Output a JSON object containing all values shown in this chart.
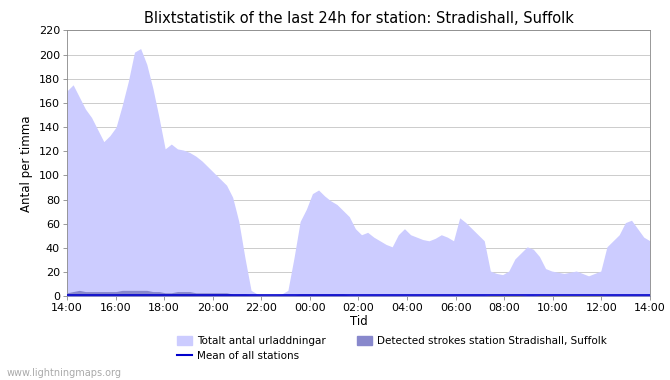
{
  "title": "Blixtstatistik of the last 24h for station: Stradishall, Suffolk",
  "ylabel": "Antal per timma",
  "xlabel": "Tid",
  "watermark": "www.lightningmaps.org",
  "x_ticks": [
    "14:00",
    "16:00",
    "18:00",
    "20:00",
    "22:00",
    "00:00",
    "02:00",
    "04:00",
    "06:00",
    "08:00",
    "10:00",
    "12:00",
    "14:00"
  ],
  "ylim": [
    0,
    220
  ],
  "yticks": [
    0,
    20,
    40,
    60,
    80,
    100,
    120,
    140,
    160,
    180,
    200,
    220
  ],
  "legend": {
    "total_label": "Totalt antal urladdningar",
    "total_color": "#ccccff",
    "detected_label": "Detected strokes station Stradishall, Suffolk",
    "detected_color": "#8888cc",
    "mean_label": "Mean of all stations",
    "mean_color": "#0000cc"
  },
  "total_y": [
    170,
    175,
    165,
    155,
    148,
    138,
    128,
    133,
    140,
    158,
    178,
    202,
    205,
    192,
    172,
    148,
    122,
    126,
    122,
    121,
    119,
    116,
    112,
    107,
    102,
    97,
    92,
    82,
    62,
    32,
    5,
    2,
    1,
    1,
    1,
    2,
    5,
    32,
    62,
    72,
    85,
    88,
    83,
    79,
    76,
    71,
    66,
    56,
    51,
    53,
    49,
    46,
    43,
    41,
    51,
    56,
    51,
    49,
    47,
    46,
    48,
    51,
    49,
    46,
    65,
    61,
    56,
    51,
    46,
    21,
    19,
    18,
    21,
    31,
    36,
    41,
    39,
    33,
    23,
    21,
    20,
    19,
    20,
    21,
    19,
    17,
    19,
    21,
    41,
    46,
    51,
    61,
    63,
    56,
    49,
    46
  ],
  "detected_y": [
    3,
    4,
    5,
    4,
    4,
    4,
    4,
    4,
    4,
    5,
    5,
    5,
    5,
    5,
    4,
    4,
    3,
    3,
    4,
    4,
    4,
    3,
    3,
    3,
    3,
    3,
    3,
    2,
    2,
    2,
    1,
    1,
    1,
    1,
    1,
    1,
    1,
    1,
    2,
    2,
    2,
    2,
    2,
    2,
    2,
    2,
    1,
    1,
    1,
    1,
    1,
    1,
    1,
    1,
    1,
    1,
    1,
    1,
    1,
    1,
    1,
    1,
    1,
    1,
    1,
    1,
    1,
    1,
    1,
    0,
    0,
    0,
    0,
    0,
    0,
    1,
    1,
    0,
    0,
    0,
    0,
    0,
    0,
    0,
    0,
    0,
    0,
    0,
    1,
    1,
    1,
    1,
    1,
    1,
    1,
    1
  ],
  "mean_y": [
    1,
    1,
    1,
    1,
    1,
    1,
    1,
    1,
    1,
    1,
    1,
    1,
    1,
    1,
    1,
    1,
    1,
    1,
    1,
    1,
    1,
    1,
    1,
    1,
    1,
    1,
    1,
    1,
    1,
    1,
    1,
    1,
    1,
    1,
    1,
    1,
    1,
    1,
    1,
    1,
    1,
    1,
    1,
    1,
    1,
    1,
    1,
    1,
    1,
    1,
    1,
    1,
    1,
    1,
    1,
    1,
    1,
    1,
    1,
    1,
    1,
    1,
    1,
    1,
    1,
    1,
    1,
    1,
    1,
    1,
    1,
    1,
    1,
    1,
    1,
    1,
    1,
    1,
    1,
    1,
    1,
    1,
    1,
    1,
    1,
    1,
    1,
    1,
    1,
    1,
    1,
    1,
    1,
    1,
    1,
    1
  ]
}
